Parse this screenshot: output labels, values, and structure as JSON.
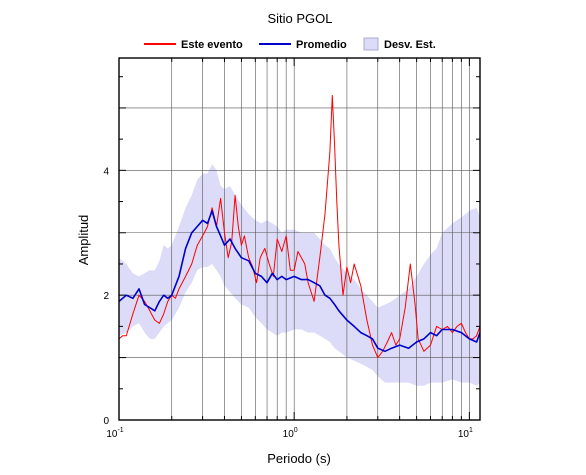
{
  "chart_data": {
    "type": "line",
    "title": "Sitio PGOL",
    "xlabel": "Periodo (s)",
    "ylabel": "Amplitud",
    "xscale": "log",
    "xlim": [
      0.1,
      11.5
    ],
    "ylim": [
      0,
      5.8
    ],
    "x_ticks": [
      {
        "value": 0.1,
        "base": "10",
        "exp": "-1"
      },
      {
        "value": 1,
        "base": "10",
        "exp": "0"
      },
      {
        "value": 10,
        "base": "10",
        "exp": "1"
      }
    ],
    "y_ticks": [
      0,
      2,
      4
    ],
    "grid": true,
    "legend_position": "top-center",
    "legend": {
      "event": "Este evento",
      "mean": "Promedio",
      "std": "Desv. Est."
    },
    "colors": {
      "event": "#ff0000",
      "mean": "#0000cc",
      "std_fill": "#dcdcf8"
    },
    "series": [
      {
        "name": "Este evento",
        "role": "event",
        "x": [
          0.1,
          0.105,
          0.11,
          0.12,
          0.13,
          0.14,
          0.15,
          0.16,
          0.17,
          0.18,
          0.19,
          0.2,
          0.21,
          0.22,
          0.24,
          0.26,
          0.28,
          0.3,
          0.32,
          0.34,
          0.36,
          0.38,
          0.4,
          0.42,
          0.44,
          0.46,
          0.48,
          0.5,
          0.52,
          0.55,
          0.58,
          0.61,
          0.64,
          0.68,
          0.72,
          0.76,
          0.8,
          0.85,
          0.9,
          0.95,
          1.0,
          1.05,
          1.1,
          1.15,
          1.2,
          1.3,
          1.4,
          1.5,
          1.6,
          1.65,
          1.7,
          1.75,
          1.8,
          1.9,
          2.0,
          2.1,
          2.2,
          2.4,
          2.6,
          2.8,
          3.0,
          3.2,
          3.4,
          3.6,
          3.8,
          4.0,
          4.3,
          4.6,
          4.9,
          5.1,
          5.5,
          6.0,
          6.5,
          7.0,
          7.5,
          8.0,
          8.5,
          9.0,
          9.5,
          10.0,
          10.5,
          11.0,
          11.5
        ],
        "y": [
          1.3,
          1.35,
          1.35,
          1.7,
          2.0,
          1.9,
          1.75,
          1.6,
          1.55,
          1.7,
          1.9,
          2.0,
          1.95,
          2.1,
          2.3,
          2.5,
          2.8,
          2.95,
          3.1,
          3.4,
          3.1,
          3.55,
          3.0,
          2.6,
          2.85,
          3.6,
          3.1,
          2.8,
          2.95,
          2.6,
          2.45,
          2.2,
          2.6,
          2.75,
          2.5,
          2.3,
          2.9,
          2.7,
          2.95,
          2.4,
          2.4,
          2.7,
          2.6,
          2.5,
          2.2,
          1.9,
          2.6,
          3.3,
          4.3,
          5.2,
          4.4,
          3.5,
          2.8,
          2.0,
          2.45,
          2.2,
          2.5,
          2.15,
          1.6,
          1.2,
          1.0,
          1.1,
          1.25,
          1.4,
          1.2,
          1.3,
          1.8,
          2.5,
          1.85,
          1.3,
          1.1,
          1.2,
          1.5,
          1.45,
          1.5,
          1.4,
          1.5,
          1.55,
          1.4,
          1.3,
          1.3,
          1.35,
          1.5
        ]
      },
      {
        "name": "Promedio",
        "role": "mean",
        "x": [
          0.1,
          0.11,
          0.12,
          0.13,
          0.14,
          0.15,
          0.16,
          0.17,
          0.18,
          0.19,
          0.2,
          0.22,
          0.24,
          0.26,
          0.28,
          0.3,
          0.32,
          0.34,
          0.36,
          0.38,
          0.4,
          0.43,
          0.46,
          0.5,
          0.55,
          0.6,
          0.65,
          0.7,
          0.75,
          0.8,
          0.85,
          0.9,
          1.0,
          1.1,
          1.2,
          1.3,
          1.4,
          1.5,
          1.6,
          1.7,
          1.8,
          2.0,
          2.2,
          2.4,
          2.6,
          2.8,
          3.0,
          3.3,
          3.6,
          4.0,
          4.5,
          5.0,
          5.5,
          6.0,
          6.5,
          7.0,
          8.0,
          9.0,
          10.0,
          11.0,
          11.5
        ],
        "y": [
          1.9,
          2.0,
          1.95,
          2.1,
          1.85,
          1.8,
          1.75,
          1.9,
          2.0,
          1.95,
          2.0,
          2.3,
          2.75,
          3.0,
          3.1,
          3.2,
          3.15,
          3.35,
          3.1,
          2.95,
          2.8,
          2.9,
          2.75,
          2.6,
          2.55,
          2.35,
          2.3,
          2.2,
          2.35,
          2.25,
          2.3,
          2.25,
          2.3,
          2.25,
          2.25,
          2.2,
          2.15,
          2.0,
          1.95,
          1.85,
          1.75,
          1.6,
          1.5,
          1.4,
          1.35,
          1.3,
          1.15,
          1.1,
          1.15,
          1.2,
          1.15,
          1.25,
          1.3,
          1.4,
          1.35,
          1.45,
          1.45,
          1.4,
          1.3,
          1.25,
          1.4
        ]
      }
    ],
    "std_band": {
      "name": "Desv. Est.",
      "x": [
        0.1,
        0.11,
        0.12,
        0.13,
        0.14,
        0.15,
        0.16,
        0.17,
        0.18,
        0.19,
        0.2,
        0.22,
        0.24,
        0.26,
        0.28,
        0.3,
        0.32,
        0.34,
        0.36,
        0.38,
        0.4,
        0.43,
        0.46,
        0.5,
        0.55,
        0.6,
        0.65,
        0.7,
        0.75,
        0.8,
        0.85,
        0.9,
        1.0,
        1.1,
        1.2,
        1.3,
        1.4,
        1.5,
        1.6,
        1.7,
        1.8,
        2.0,
        2.2,
        2.4,
        2.6,
        2.8,
        3.0,
        3.3,
        3.6,
        4.0,
        4.5,
        5.0,
        5.5,
        6.0,
        6.5,
        7.0,
        8.0,
        9.0,
        10.0,
        11.0,
        11.5
      ],
      "upper": [
        2.6,
        2.5,
        2.35,
        2.3,
        2.35,
        2.4,
        2.4,
        2.55,
        2.8,
        2.75,
        2.8,
        3.1,
        3.4,
        3.6,
        3.85,
        3.95,
        3.95,
        4.1,
        4.0,
        3.75,
        3.7,
        3.75,
        3.6,
        3.45,
        3.3,
        3.2,
        3.15,
        3.2,
        3.15,
        3.1,
        3.0,
        3.05,
        3.05,
        3.0,
        3.0,
        3.0,
        2.9,
        2.8,
        2.75,
        2.6,
        2.5,
        2.35,
        2.25,
        2.1,
        2.0,
        1.9,
        1.8,
        1.85,
        1.9,
        2.0,
        2.1,
        2.3,
        2.5,
        2.65,
        2.75,
        3.0,
        3.15,
        3.25,
        3.35,
        3.4,
        3.25
      ],
      "lower": [
        1.35,
        1.4,
        1.5,
        1.55,
        1.4,
        1.3,
        1.3,
        1.4,
        1.5,
        1.55,
        1.6,
        1.8,
        2.05,
        2.2,
        2.4,
        2.45,
        2.45,
        2.5,
        2.4,
        2.3,
        2.15,
        2.05,
        1.95,
        1.85,
        1.8,
        1.65,
        1.55,
        1.45,
        1.4,
        1.35,
        1.4,
        1.4,
        1.45,
        1.45,
        1.4,
        1.4,
        1.35,
        1.3,
        1.25,
        1.15,
        1.1,
        1.0,
        0.95,
        0.9,
        0.85,
        0.8,
        0.7,
        0.6,
        0.6,
        0.6,
        0.6,
        0.55,
        0.55,
        0.6,
        0.6,
        0.6,
        0.65,
        0.6,
        0.6,
        0.55,
        0.6
      ]
    }
  }
}
